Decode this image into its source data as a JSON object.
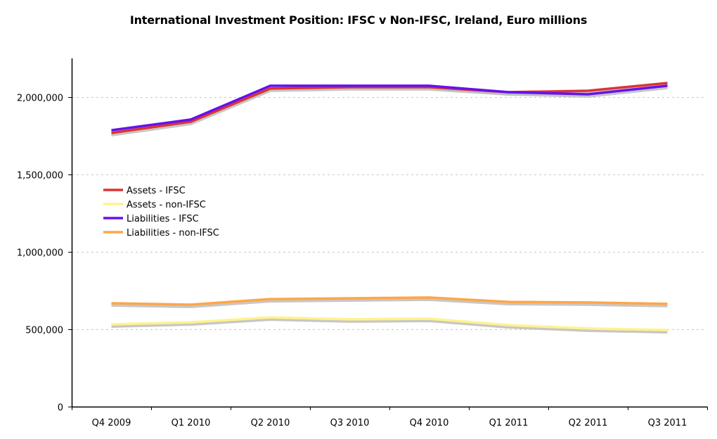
{
  "chart_data": {
    "type": "line",
    "title": "International Investment Position: IFSC v Non-IFSC, Ireland, Euro millions",
    "xlabel": "",
    "ylabel": "",
    "categories": [
      "Q4 2009",
      "Q1 2010",
      "Q2 2010",
      "Q3 2010",
      "Q4 2010",
      "Q1 2011",
      "Q2 2011",
      "Q3 2011"
    ],
    "ylim": [
      0,
      2250000
    ],
    "yticks": [
      0,
      500000,
      1000000,
      1500000,
      2000000
    ],
    "ytick_labels": [
      "0",
      "500,000",
      "1,000,000",
      "1,500,000",
      "2,000,000"
    ],
    "grid": true,
    "legend_position": "left-middle",
    "series": [
      {
        "name": "Assets - IFSC",
        "color": "#dd3333",
        "values": [
          1768000,
          1841000,
          2055000,
          2064000,
          2064000,
          2032000,
          2041000,
          2091000
        ]
      },
      {
        "name": "Assets - non-IFSC",
        "color": "#fff38c",
        "values": [
          532000,
          545000,
          577000,
          564000,
          568000,
          527000,
          505000,
          495000
        ]
      },
      {
        "name": "Liabilities - IFSC",
        "color": "#6611ee",
        "values": [
          1786000,
          1855000,
          2073000,
          2073000,
          2073000,
          2032000,
          2018000,
          2073000
        ]
      },
      {
        "name": "Liabilities - non-IFSC",
        "color": "#ffa647",
        "values": [
          668000,
          659000,
          695000,
          700000,
          705000,
          677000,
          673000,
          664000
        ]
      }
    ]
  }
}
